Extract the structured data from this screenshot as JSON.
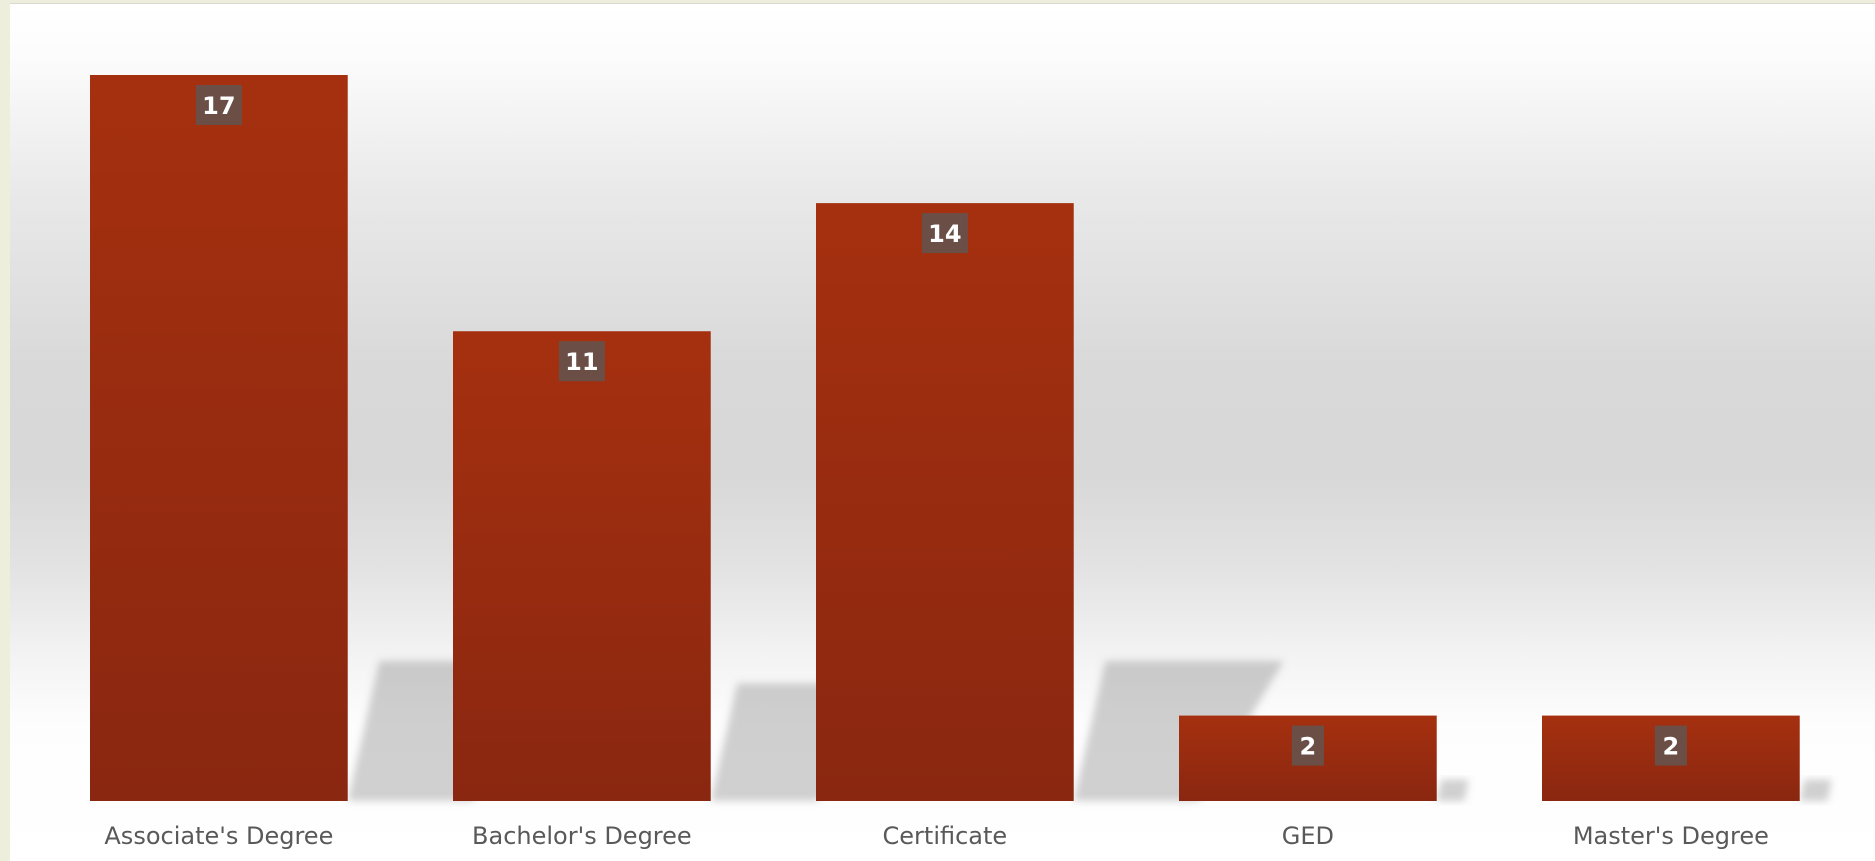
{
  "chart_data": {
    "type": "bar",
    "title": "",
    "xlabel": "",
    "ylabel": "",
    "categories": [
      "Associate's Degree",
      "Bachelor's Degree",
      "Certificate",
      "GED",
      "Master's Degree"
    ],
    "values": [
      17,
      11,
      14,
      2,
      2
    ],
    "ylim": [
      0,
      17
    ],
    "grid": false,
    "legend": "none",
    "data_labels": "inside-top",
    "bar_color": "#9b2c12",
    "label_box_color": "#6b4f47"
  }
}
